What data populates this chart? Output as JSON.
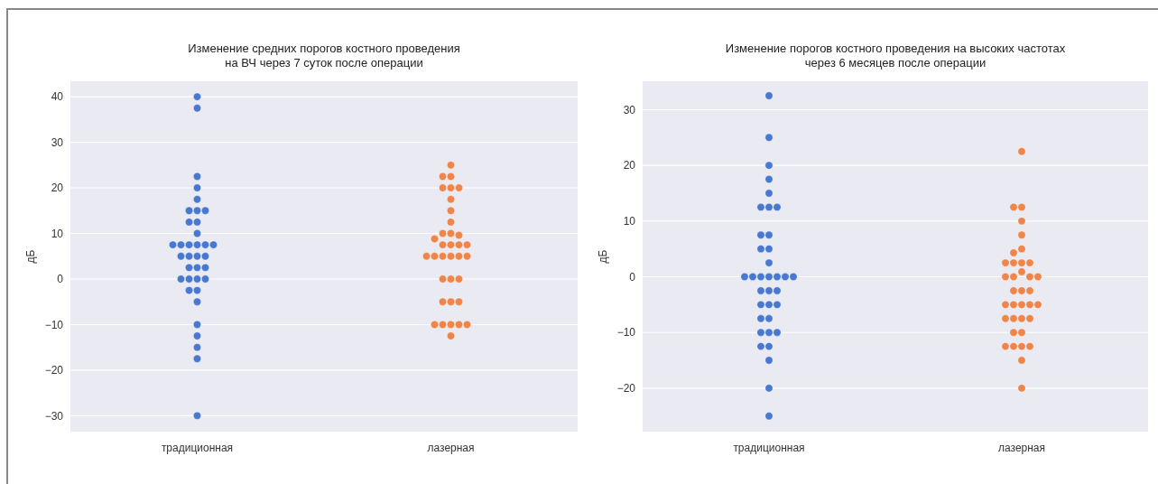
{
  "chart_data": [
    {
      "type": "scatter",
      "title": "Изменение средних порогов костного проведения\nна ВЧ через 7 суток после операции",
      "ylabel": "дБ",
      "categories": [
        "традиционная",
        "лазерная"
      ],
      "ylim": [
        -33.5,
        43.4
      ],
      "yticks": [
        -30,
        -20,
        -10,
        0,
        10,
        20,
        30,
        40
      ],
      "grid": "y",
      "marker": "circle",
      "series": [
        {
          "color": "#4878d0",
          "x": [
            "традиционная",
            "традиционная",
            "традиционная",
            "традиционная",
            "традиционная",
            "традиционная",
            "традиционная",
            "традиционная",
            "традиционная",
            "традиционная",
            "традиционная",
            "традиционная",
            "традиционная",
            "традиционная",
            "традиционная",
            "традиционная",
            "традиционная",
            "традиционная",
            "традиционная",
            "традиционная",
            "традиционная",
            "традиционная",
            "традиционная",
            "традиционная",
            "традиционная",
            "традиционная",
            "традиционная",
            "традиционная",
            "традиционная",
            "традиционная",
            "традиционная",
            "традиционная",
            "традиционная",
            "традиционная",
            "традиционная",
            "традиционная"
          ],
          "values": [
            40,
            37.5,
            22.5,
            20,
            17.5,
            15,
            15,
            15,
            12.5,
            12.5,
            10,
            7.5,
            7.5,
            7.5,
            7.5,
            7.5,
            7.5,
            5,
            5,
            5,
            5,
            2.5,
            2.5,
            2.5,
            0,
            0,
            0,
            0,
            -2.5,
            -2.5,
            -5,
            -10,
            -12.5,
            -15,
            -17.5,
            -30
          ]
        },
        {
          "color": "#ee854a",
          "x": [
            "лазерная",
            "лазерная",
            "лазерная",
            "лазерная",
            "лазерная",
            "лазерная",
            "лазерная",
            "лазерная",
            "лазерная",
            "лазерная",
            "лазерная",
            "лазерная",
            "лазерная",
            "лазерная",
            "лазерная",
            "лазерная",
            "лазерная",
            "лазерная",
            "лазерная",
            "лазерная",
            "лазерная",
            "лазерная",
            "лазерная",
            "лазерная",
            "лазерная",
            "лазерная",
            "лазерная",
            "лазерная",
            "лазерная",
            "лазерная",
            "лазерная",
            "лазерная",
            "лазерная",
            "лазерная",
            "лазерная"
          ],
          "values": [
            25,
            22.5,
            22.5,
            20,
            20,
            20,
            17.5,
            15,
            12.5,
            10,
            10,
            9.6,
            8.8,
            7.5,
            7.5,
            7.5,
            7.5,
            5,
            5,
            5,
            5,
            5,
            5,
            0,
            0,
            0,
            -5,
            -5,
            -5,
            -10,
            -10,
            -10,
            -10,
            -10,
            -12.5
          ]
        }
      ]
    },
    {
      "type": "scatter",
      "title": "Изменение порогов костного проведения на высоких частотах\nчерез 6 месяцев после операции",
      "ylabel": "дБ",
      "categories": [
        "традиционная",
        "лазерная"
      ],
      "ylim": [
        -27.8,
        35.1
      ],
      "yticks": [
        -20,
        -10,
        0,
        10,
        20,
        30
      ],
      "grid": "y",
      "marker": "circle",
      "series": [
        {
          "color": "#4878d0",
          "x": [
            "традиционная",
            "традиционная",
            "традиционная",
            "традиционная",
            "традиционная",
            "традиционная",
            "традиционная",
            "традиционная",
            "традиционная",
            "традиционная",
            "традиционная",
            "традиционная",
            "традиционная",
            "традиционная",
            "традиционная",
            "традиционная",
            "традиционная",
            "традиционная",
            "традиционная",
            "традиционная",
            "традиционная",
            "традиционная",
            "традиционная",
            "традиционная",
            "традиционная",
            "традиционная",
            "традиционная",
            "традиционная",
            "традиционная",
            "традиционная",
            "традиционная",
            "традиционная",
            "традиционная",
            "традиционная",
            "традиционная",
            "традиционная"
          ],
          "values": [
            32.5,
            25,
            20,
            17.5,
            15,
            12.5,
            12.5,
            12.5,
            7.5,
            7.5,
            5,
            5,
            2.5,
            0,
            0,
            0,
            0,
            0,
            0,
            0,
            -2.5,
            -2.5,
            -2.5,
            -5,
            -5,
            -5,
            -7.5,
            -7.5,
            -10,
            -10,
            -10,
            -12.5,
            -12.5,
            -15,
            -20,
            -25
          ]
        },
        {
          "color": "#ee854a",
          "x": [
            "лазерная",
            "лазерная",
            "лазерная",
            "лазерная",
            "лазерная",
            "лазерная",
            "лазерная",
            "лазерная",
            "лазерная",
            "лазерная",
            "лазерная",
            "лазерная",
            "лазерная",
            "лазерная",
            "лазерная",
            "лазерная",
            "лазерная",
            "лазерная",
            "лазерная",
            "лазерная",
            "лазерная",
            "лазерная",
            "лазерная",
            "лазерная",
            "лазерная",
            "лазерная",
            "лазерная",
            "лазерная",
            "лазерная",
            "лазерная",
            "лазерная",
            "лазерная",
            "лазерная",
            "лазерная",
            "лазерная",
            "лазерная"
          ],
          "values": [
            22.5,
            12.5,
            12.5,
            10,
            7.5,
            5,
            4.3,
            2.5,
            2.5,
            2.5,
            2.5,
            0.9,
            0,
            0,
            0,
            0,
            -2.5,
            -2.5,
            -2.5,
            -5,
            -5,
            -5,
            -5,
            -5,
            -7.5,
            -7.5,
            -7.5,
            -7.5,
            -10,
            -10,
            -12.5,
            -12.5,
            -12.5,
            -12.5,
            -15,
            -20
          ]
        }
      ]
    }
  ]
}
